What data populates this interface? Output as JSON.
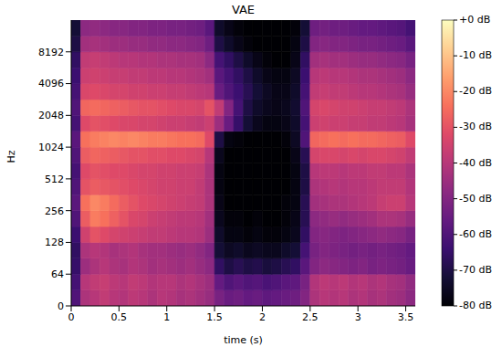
{
  "chart_data": {
    "type": "heatmap",
    "title": "VAE",
    "x_label": "time (s)",
    "y_label": "Hz",
    "x_bins": [
      0,
      0.1,
      0.2,
      0.3,
      0.4,
      0.5,
      0.6,
      0.7,
      0.8,
      0.9,
      1.0,
      1.1,
      1.2,
      1.3,
      1.4,
      1.5,
      1.6,
      1.7,
      1.8,
      1.9,
      2.0,
      2.1,
      2.2,
      2.3,
      2.4,
      2.5,
      2.6,
      2.7,
      2.8,
      2.9,
      3.0,
      3.1,
      3.2,
      3.3,
      3.4,
      3.5,
      3.6
    ],
    "xlim": [
      0,
      3.6
    ],
    "xticks": [
      0,
      0.5,
      1,
      1.5,
      2,
      2.5,
      3,
      3.5
    ],
    "categories": [
      "0",
      null,
      "64",
      null,
      "128",
      null,
      "256",
      null,
      "512",
      null,
      "1024",
      null,
      "2048",
      null,
      "4096",
      null,
      "8192",
      null
    ],
    "cells": [
      [
        -60,
        -42,
        -40,
        -38,
        -40,
        -41,
        -39,
        -40,
        -42,
        -40,
        -41,
        -43,
        -42,
        -44,
        -46,
        -52,
        -55,
        -54,
        -56,
        -55,
        -57,
        -56,
        -55,
        -54,
        -50,
        -42,
        -40,
        -41,
        -40,
        -42,
        -41,
        -43,
        -42,
        -44,
        -45,
        -48
      ],
      [
        -62,
        -40,
        -38,
        -37,
        -39,
        -40,
        -38,
        -39,
        -41,
        -40,
        -40,
        -42,
        -41,
        -43,
        -45,
        -56,
        -60,
        -58,
        -60,
        -59,
        -61,
        -60,
        -58,
        -57,
        -52,
        -41,
        -39,
        -40,
        -39,
        -41,
        -40,
        -42,
        -41,
        -43,
        -44,
        -47
      ],
      [
        -65,
        -45,
        -42,
        -40,
        -42,
        -43,
        -41,
        -42,
        -44,
        -43,
        -44,
        -45,
        -44,
        -46,
        -48,
        -66,
        -70,
        -68,
        -70,
        -69,
        -71,
        -70,
        -68,
        -66,
        -58,
        -50,
        -48,
        -49,
        -50,
        -51,
        -50,
        -52,
        -51,
        -52,
        -53,
        -55
      ],
      [
        -66,
        -42,
        -40,
        -41,
        -43,
        -42,
        -41,
        -43,
        -44,
        -44,
        -45,
        -46,
        -45,
        -47,
        -50,
        -72,
        -75,
        -74,
        -76,
        -75,
        -76,
        -76,
        -74,
        -72,
        -62,
        -52,
        -50,
        -51,
        -52,
        -53,
        -52,
        -53,
        -52,
        -53,
        -54,
        -56
      ],
      [
        -64,
        -35,
        -30,
        -32,
        -34,
        -35,
        -36,
        -37,
        -38,
        -38,
        -39,
        -40,
        -40,
        -41,
        -45,
        -74,
        -78,
        -78,
        -79,
        -78,
        -79,
        -79,
        -78,
        -76,
        -66,
        -50,
        -49,
        -50,
        -51,
        -50,
        -49,
        -48,
        -47,
        -48,
        -49,
        -52
      ],
      [
        -60,
        -28,
        -22,
        -24,
        -27,
        -30,
        -33,
        -34,
        -36,
        -37,
        -38,
        -39,
        -39,
        -40,
        -44,
        -76,
        -79,
        -79,
        -80,
        -79,
        -80,
        -80,
        -79,
        -77,
        -68,
        -48,
        -47,
        -46,
        -47,
        -46,
        -45,
        -44,
        -42,
        -42,
        -43,
        -46
      ],
      [
        -58,
        -24,
        -20,
        -22,
        -25,
        -28,
        -30,
        -32,
        -33,
        -34,
        -35,
        -36,
        -37,
        -38,
        -42,
        -77,
        -80,
        -80,
        -80,
        -80,
        -80,
        -80,
        -79,
        -78,
        -68,
        -44,
        -43,
        -42,
        -42,
        -41,
        -40,
        -39,
        -37,
        -36,
        -36,
        -40
      ],
      [
        -60,
        -30,
        -28,
        -29,
        -30,
        -31,
        -32,
        -33,
        -34,
        -35,
        -35,
        -36,
        -36,
        -38,
        -42,
        -78,
        -80,
        -80,
        -80,
        -80,
        -80,
        -80,
        -80,
        -78,
        -70,
        -42,
        -41,
        -40,
        -41,
        -40,
        -40,
        -39,
        -38,
        -38,
        -38,
        -41
      ],
      [
        -62,
        -32,
        -30,
        -31,
        -32,
        -32,
        -33,
        -34,
        -34,
        -35,
        -35,
        -36,
        -36,
        -37,
        -42,
        -78,
        -80,
        -80,
        -80,
        -80,
        -80,
        -80,
        -80,
        -78,
        -70,
        -40,
        -39,
        -39,
        -40,
        -39,
        -39,
        -38,
        -38,
        -39,
        -39,
        -42
      ],
      [
        -60,
        -28,
        -26,
        -27,
        -28,
        -29,
        -30,
        -30,
        -31,
        -31,
        -32,
        -32,
        -33,
        -34,
        -40,
        -76,
        -80,
        -80,
        -80,
        -80,
        -80,
        -80,
        -80,
        -77,
        -68,
        -34,
        -33,
        -33,
        -34,
        -33,
        -34,
        -33,
        -33,
        -34,
        -35,
        -38
      ],
      [
        -58,
        -24,
        -22,
        -21,
        -20,
        -21,
        -20,
        -21,
        -22,
        -22,
        -23,
        -24,
        -24,
        -25,
        -32,
        -70,
        -78,
        -79,
        -80,
        -80,
        -80,
        -80,
        -79,
        -75,
        -60,
        -26,
        -25,
        -24,
        -25,
        -24,
        -25,
        -25,
        -26,
        -27,
        -28,
        -32
      ],
      [
        -62,
        -32,
        -30,
        -31,
        -32,
        -33,
        -33,
        -34,
        -34,
        -35,
        -36,
        -36,
        -37,
        -38,
        -36,
        -45,
        -55,
        -65,
        -72,
        -76,
        -78,
        -78,
        -77,
        -74,
        -62,
        -36,
        -35,
        -36,
        -36,
        -37,
        -37,
        -38,
        -38,
        -39,
        -40,
        -43
      ],
      [
        -60,
        -26,
        -25,
        -26,
        -27,
        -28,
        -29,
        -30,
        -30,
        -31,
        -32,
        -33,
        -33,
        -34,
        -30,
        -38,
        -50,
        -62,
        -70,
        -74,
        -76,
        -77,
        -76,
        -73,
        -60,
        -34,
        -33,
        -34,
        -35,
        -35,
        -36,
        -37,
        -37,
        -38,
        -39,
        -42
      ],
      [
        -62,
        -33,
        -32,
        -33,
        -34,
        -34,
        -35,
        -35,
        -36,
        -36,
        -37,
        -37,
        -38,
        -39,
        -40,
        -55,
        -60,
        -64,
        -68,
        -72,
        -75,
        -77,
        -77,
        -74,
        -62,
        -38,
        -37,
        -38,
        -38,
        -39,
        -40,
        -40,
        -41,
        -42,
        -43,
        -46
      ],
      [
        -64,
        -36,
        -35,
        -36,
        -37,
        -37,
        -38,
        -38,
        -39,
        -39,
        -40,
        -40,
        -41,
        -42,
        -44,
        -58,
        -62,
        -66,
        -70,
        -74,
        -77,
        -78,
        -78,
        -75,
        -64,
        -40,
        -39,
        -40,
        -40,
        -41,
        -42,
        -42,
        -43,
        -44,
        -45,
        -48
      ],
      [
        -66,
        -38,
        -37,
        -38,
        -39,
        -40,
        -40,
        -41,
        -41,
        -42,
        -42,
        -43,
        -43,
        -44,
        -48,
        -62,
        -66,
        -70,
        -74,
        -77,
        -79,
        -80,
        -80,
        -77,
        -66,
        -44,
        -43,
        -44,
        -44,
        -45,
        -46,
        -46,
        -47,
        -48,
        -49,
        -52
      ],
      [
        -70,
        -44,
        -43,
        -44,
        -45,
        -45,
        -46,
        -46,
        -47,
        -47,
        -48,
        -48,
        -49,
        -50,
        -54,
        -70,
        -74,
        -77,
        -79,
        -80,
        -80,
        -80,
        -80,
        -78,
        -70,
        -50,
        -49,
        -50,
        -50,
        -51,
        -52,
        -52,
        -53,
        -54,
        -55,
        -58
      ],
      [
        -72,
        -48,
        -47,
        -48,
        -49,
        -49,
        -50,
        -50,
        -51,
        -51,
        -52,
        -52,
        -53,
        -54,
        -58,
        -74,
        -77,
        -79,
        -80,
        -80,
        -80,
        -80,
        -80,
        -79,
        -72,
        -54,
        -53,
        -54,
        -54,
        -55,
        -56,
        -56,
        -57,
        -58,
        -59,
        -62
      ]
    ],
    "colorbar": {
      "range": [
        -80,
        0
      ],
      "ticks": [
        {
          "value": 0,
          "label": "+0 dB"
        },
        {
          "value": -10,
          "label": "-10 dB"
        },
        {
          "value": -20,
          "label": "-20 dB"
        },
        {
          "value": -30,
          "label": "-30 dB"
        },
        {
          "value": -40,
          "label": "-40 dB"
        },
        {
          "value": -50,
          "label": "-50 dB"
        },
        {
          "value": -60,
          "label": "-60 dB"
        },
        {
          "value": -70,
          "label": "-70 dB"
        },
        {
          "value": -80,
          "label": "-80 dB"
        }
      ]
    }
  }
}
